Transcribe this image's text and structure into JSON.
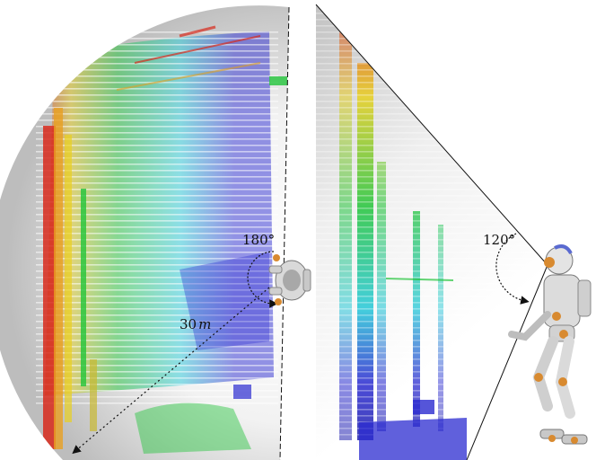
{
  "left_panel": {
    "fov_label": "180°",
    "range_label_value": "30",
    "range_label_unit": "m"
  },
  "right_panel": {
    "fov_label": "120°"
  },
  "colors": {
    "near": "#2b2bd0",
    "mid": "#24c8d8",
    "green": "#22c43a",
    "yellow": "#e8d020",
    "far": "#d82a1c",
    "fov_shade": "#c8c8c8"
  }
}
